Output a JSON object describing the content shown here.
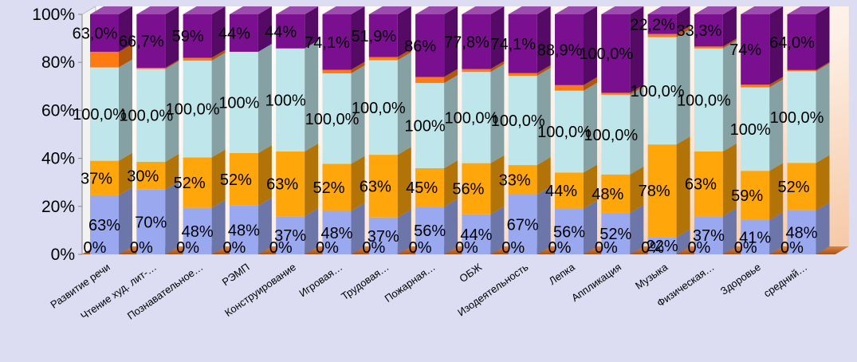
{
  "chart_data": {
    "type": "bar",
    "stacked": true,
    "percent_stacked": true,
    "three_d": true,
    "title": "",
    "xlabel": "",
    "ylabel": "",
    "ylim": [
      0,
      100
    ],
    "y_ticks": [
      "0%",
      "20%",
      "40%",
      "60%",
      "80%",
      "100%"
    ],
    "grid": false,
    "legend": "none",
    "categories": [
      "Развитие речи",
      "Чтение худ. лит-…",
      "Познавательное…",
      "РЭМП",
      "Конструирование",
      "Игровая…",
      "Трудовая…",
      "Пожарная…",
      "ОБЖ",
      "Изодеятельность",
      "Лепка",
      "Аппликация",
      "Музыка",
      "Физическая…",
      "Здоровье",
      "средний…"
    ],
    "segment_shares_pct": [
      [
        0.0,
        24.6,
        14.4,
        38.9,
        6.5,
        15.6
      ],
      [
        0.0,
        27.0,
        11.6,
        38.6,
        0.5,
        22.3
      ],
      [
        0.0,
        19.4,
        21.0,
        40.3,
        1.2,
        18.1
      ],
      [
        0.0,
        20.3,
        21.9,
        42.2,
        0.0,
        15.6
      ],
      [
        0.0,
        15.9,
        27.0,
        42.9,
        0.0,
        14.2
      ],
      [
        0.0,
        18.1,
        19.6,
        37.7,
        1.5,
        23.1
      ],
      [
        0.0,
        15.4,
        26.1,
        39.4,
        1.3,
        17.8
      ],
      [
        0.0,
        19.9,
        16.0,
        35.5,
        2.5,
        26.1
      ],
      [
        0.0,
        16.7,
        21.3,
        38.0,
        1.2,
        22.8
      ],
      [
        0.0,
        24.9,
        12.3,
        37.2,
        1.1,
        24.5
      ],
      [
        0.0,
        19.1,
        15.0,
        34.1,
        2.3,
        29.5
      ],
      [
        0.0,
        17.3,
        16.0,
        33.2,
        0.8,
        32.7
      ],
      [
        0.0,
        7.2,
        38.6,
        44.7,
        1.3,
        8.2
      ],
      [
        0.0,
        15.9,
        27.0,
        42.9,
        0.8,
        13.4
      ],
      [
        0.0,
        14.3,
        20.5,
        34.8,
        1.1,
        29.3
      ],
      [
        0.0,
        18.3,
        19.8,
        38.2,
        0.5,
        23.2
      ]
    ],
    "series": [
      {
        "color": "#b07cf0",
        "labels": [
          "0%",
          "0%",
          "0%",
          "0%",
          "0%",
          "0%",
          "0%",
          "0%",
          "0%",
          "0%",
          "0%",
          "0%",
          "0%",
          "0%",
          "0%",
          "0%"
        ]
      },
      {
        "color": "#9aa8f0",
        "labels": [
          "63%",
          "70%",
          "48%",
          "48%",
          "37%",
          "48%",
          "37%",
          "56%",
          "44%",
          "67%",
          "56%",
          "52%",
          "22%",
          "37%",
          "41%",
          "48%"
        ]
      },
      {
        "color": "#ffa60a",
        "labels": [
          "37%",
          "30%",
          "52%",
          "52%",
          "63%",
          "52%",
          "63%",
          "45%",
          "56%",
          "33%",
          "44%",
          "48%",
          "78%",
          "63%",
          "59%",
          "52%"
        ]
      },
      {
        "color": "#bfe6ea",
        "labels": [
          "100,0%",
          "100,0%",
          "100,0%",
          "100%",
          "100%",
          "100,0%",
          "100,0%",
          "100%",
          "100,0%",
          "100,0%",
          "100,0%",
          "100,0%",
          "100,0%",
          "100,0%",
          "100%",
          "100,0%"
        ]
      },
      {
        "color": "#ff7a10",
        "labels": [
          "",
          "",
          "",
          "",
          "",
          "",
          "",
          "",
          "",
          "",
          "",
          "",
          "",
          "",
          "",
          ""
        ]
      },
      {
        "color": "#7a1090",
        "labels": [
          "63,0%",
          "66,7%",
          "59%",
          "44%",
          "44%",
          "74,1%",
          "51,9%",
          "86%",
          "77,8%",
          "74,1%",
          "88,9%",
          "100,0%",
          "22,2%",
          "33,3%",
          "74%",
          "64,0%"
        ]
      }
    ]
  }
}
